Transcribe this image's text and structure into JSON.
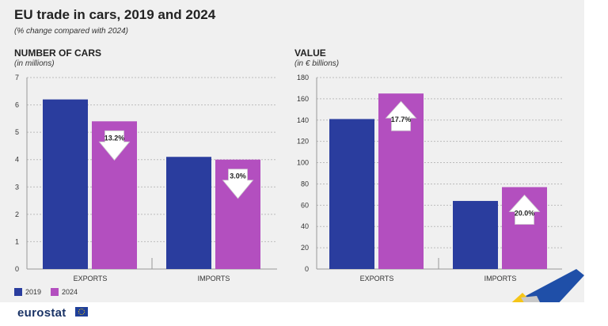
{
  "title": "EU trade in cars, 2019 and 2024",
  "subtitle": "(% change compared with 2024)",
  "legend": [
    {
      "label": "2019",
      "color": "#2a3d9e"
    },
    {
      "label": "2024",
      "color": "#b34fbf"
    }
  ],
  "logo": "eurostat",
  "chart_data": [
    {
      "type": "bar",
      "title": "NUMBER OF CARS",
      "ylabel": "(in millions)",
      "categories": [
        "EXPORTS",
        "IMPORTS"
      ],
      "series": [
        {
          "name": "2019",
          "values": [
            6.2,
            4.1
          ]
        },
        {
          "name": "2024",
          "values": [
            5.4,
            4.0
          ]
        }
      ],
      "ylim": [
        0,
        7
      ],
      "yticks": [
        0,
        1,
        2,
        3,
        4,
        5,
        6,
        7
      ],
      "annotations": [
        {
          "category": "EXPORTS",
          "label": "13.2%",
          "direction": "down"
        },
        {
          "category": "IMPORTS",
          "label": "3.0%",
          "direction": "down"
        }
      ],
      "grid": true
    },
    {
      "type": "bar",
      "title": "VALUE",
      "ylabel": "(in € billions)",
      "categories": [
        "EXPORTS",
        "IMPORTS"
      ],
      "series": [
        {
          "name": "2019",
          "values": [
            141,
            64
          ]
        },
        {
          "name": "2024",
          "values": [
            165,
            77
          ]
        }
      ],
      "ylim": [
        0,
        180
      ],
      "yticks": [
        0,
        20,
        40,
        60,
        80,
        100,
        120,
        140,
        160,
        180
      ],
      "annotations": [
        {
          "category": "EXPORTS",
          "label": "17.7%",
          "direction": "up"
        },
        {
          "category": "IMPORTS",
          "label": "20.0%",
          "direction": "up"
        }
      ],
      "grid": true
    }
  ]
}
